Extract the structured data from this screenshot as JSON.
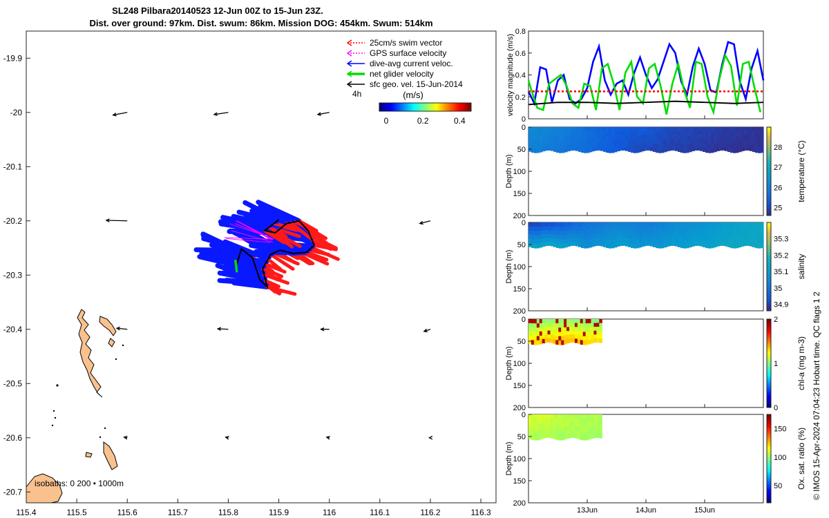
{
  "title": {
    "line1": "SL248 Pilbara20140523 12-Jun 00Z to 15-Jun 23Z.",
    "line2": "Dist. over ground: 97km. Dist. swum: 86km. Mission DOG: 454km. Swum: 514km"
  },
  "chart_data": [
    {
      "type": "map",
      "xlim": [
        115.4,
        116.33
      ],
      "ylim": [
        -20.72,
        -19.85
      ],
      "x_ticks": [
        "115.4",
        "115.5",
        "115.6",
        "115.7",
        "115.8",
        "115.9",
        "116",
        "116.1",
        "116.2",
        "116.3"
      ],
      "y_ticks": [
        "-19.9",
        "-20",
        "-20.1",
        "-20.2",
        "-20.3",
        "-20.4",
        "-20.5",
        "-20.6",
        "-20.7"
      ],
      "legend": [
        {
          "label": "25cm/s swim vector",
          "color": "#ff0000",
          "style": "dotted"
        },
        {
          "label": "GPS surface velocity",
          "color": "#ff00ff",
          "style": "dotted"
        },
        {
          "label": "dive-avg current veloc.",
          "color": "#0000ff",
          "style": "solid"
        },
        {
          "label": "net glider velocity",
          "color": "#00dd00",
          "style": "thick"
        },
        {
          "label": "sfc geo. vel. 15-Jun-2014",
          "color": "#000000",
          "style": "solid"
        }
      ],
      "legend_placement": "top-right",
      "colorbar": {
        "tag": "4h",
        "units": "(m/s)",
        "ticks": [
          "0",
          "0.2",
          "0.4"
        ],
        "range": [
          0,
          0.5
        ]
      },
      "isobaths_label": "isobaths: 0    200 • 1000m",
      "geo_vectors": [
        {
          "lon": 115.6,
          "lat": -20.0,
          "u": -0.027,
          "v": -0.005
        },
        {
          "lon": 115.8,
          "lat": -20.0,
          "u": -0.027,
          "v": -0.004
        },
        {
          "lon": 116.0,
          "lat": -20.0,
          "u": -0.022,
          "v": -0.004
        },
        {
          "lon": 115.6,
          "lat": -20.2,
          "u": -0.04,
          "v": 0.001
        },
        {
          "lon": 116.2,
          "lat": -20.2,
          "u": -0.02,
          "v": -0.005
        },
        {
          "lon": 115.6,
          "lat": -20.4,
          "u": -0.02,
          "v": 0.002
        },
        {
          "lon": 115.8,
          "lat": -20.4,
          "u": -0.02,
          "v": 0.001
        },
        {
          "lon": 116.0,
          "lat": -20.4,
          "u": -0.016,
          "v": 0.0
        },
        {
          "lon": 116.2,
          "lat": -20.4,
          "u": -0.012,
          "v": -0.004
        },
        {
          "lon": 115.6,
          "lat": -20.6,
          "u": -0.006,
          "v": 0.001
        },
        {
          "lon": 115.8,
          "lat": -20.6,
          "u": -0.005,
          "v": 0.001
        },
        {
          "lon": 116.0,
          "lat": -20.6,
          "u": -0.005,
          "v": 0.001
        },
        {
          "lon": 116.2,
          "lat": -20.6,
          "u": -0.002,
          "v": 0.0
        }
      ],
      "glider_track": [
        [
          115.816,
          -20.282
        ],
        [
          115.826,
          -20.252
        ],
        [
          115.848,
          -20.268
        ],
        [
          115.862,
          -20.308
        ],
        [
          115.877,
          -20.322
        ],
        [
          115.868,
          -20.288
        ],
        [
          115.884,
          -20.262
        ],
        [
          115.902,
          -20.254
        ],
        [
          115.928,
          -20.26
        ],
        [
          115.955,
          -20.258
        ],
        [
          115.97,
          -20.245
        ],
        [
          115.958,
          -20.218
        ],
        [
          115.94,
          -20.2
        ],
        [
          115.915,
          -20.205
        ],
        [
          115.893,
          -20.222
        ],
        [
          115.872,
          -20.218
        ],
        [
          115.9,
          -20.198
        ]
      ]
    },
    {
      "type": "line",
      "ylabel": "velocity magnitude (m/s)",
      "ylim": [
        0,
        0.8
      ],
      "y_ticks": [
        "0",
        "0.2",
        "0.4",
        "0.6",
        "0.8"
      ],
      "xlim_days": [
        12.0,
        16.0
      ],
      "series": [
        {
          "color": "#0000ff",
          "x": [
            12.0,
            12.1,
            12.2,
            12.3,
            12.4,
            12.5,
            12.6,
            12.7,
            12.8,
            12.9,
            13.0,
            13.1,
            13.2,
            13.3,
            13.4,
            13.5,
            13.6,
            13.7,
            13.8,
            13.9,
            14.0,
            14.1,
            14.2,
            14.3,
            14.4,
            14.5,
            14.6,
            14.7,
            14.8,
            14.9,
            15.0,
            15.1,
            15.2,
            15.3,
            15.4,
            15.5,
            15.6,
            15.7,
            15.8,
            15.9,
            16.0
          ],
          "y": [
            0.25,
            0.14,
            0.47,
            0.45,
            0.15,
            0.35,
            0.4,
            0.18,
            0.14,
            0.18,
            0.28,
            0.52,
            0.66,
            0.35,
            0.22,
            0.32,
            0.35,
            0.22,
            0.42,
            0.56,
            0.4,
            0.28,
            0.36,
            0.52,
            0.68,
            0.6,
            0.34,
            0.22,
            0.48,
            0.64,
            0.5,
            0.26,
            0.24,
            0.5,
            0.7,
            0.68,
            0.34,
            0.18,
            0.46,
            0.62,
            0.35
          ]
        },
        {
          "color": "#00dd00",
          "x": [
            12.0,
            12.05,
            12.15,
            12.25,
            12.35,
            12.45,
            12.55,
            12.65,
            12.75,
            12.85,
            12.95,
            13.05,
            13.15,
            13.25,
            13.35,
            13.45,
            13.55,
            13.65,
            13.75,
            13.85,
            13.95,
            14.05,
            14.15,
            14.25,
            14.35,
            14.45,
            14.55,
            14.65,
            14.75,
            14.85,
            14.95,
            15.05,
            15.15,
            15.25,
            15.35,
            15.45,
            15.55,
            15.65,
            15.75,
            15.85,
            15.95
          ],
          "y": [
            0.35,
            0.26,
            0.1,
            0.08,
            0.32,
            0.36,
            0.4,
            0.3,
            0.14,
            0.1,
            0.32,
            0.3,
            0.08,
            0.46,
            0.5,
            0.32,
            0.08,
            0.42,
            0.52,
            0.2,
            0.14,
            0.46,
            0.5,
            0.3,
            0.04,
            0.32,
            0.5,
            0.26,
            0.1,
            0.52,
            0.5,
            0.2,
            0.06,
            0.36,
            0.58,
            0.48,
            0.12,
            0.5,
            0.52,
            0.28,
            0.06
          ]
        },
        {
          "color": "#ff0000",
          "style": "dotted",
          "x": [
            12.0,
            16.0
          ],
          "y": [
            0.25,
            0.25
          ]
        },
        {
          "color": "#000000",
          "x": [
            12.0,
            12.5,
            13.0,
            13.5,
            14.0,
            14.5,
            15.0,
            15.5,
            16.0
          ],
          "y": [
            0.13,
            0.15,
            0.15,
            0.14,
            0.15,
            0.16,
            0.15,
            0.14,
            0.15
          ]
        }
      ]
    },
    {
      "type": "heatmap",
      "ylabel": "Depth (m)",
      "ylim": [
        200,
        0
      ],
      "y_ticks": [
        "0",
        "50",
        "100",
        "150",
        "200"
      ],
      "colorbar_label": "temperature (°C)",
      "colorbar_range": [
        24.6,
        29.0
      ],
      "colorbar_ticks": [
        "25",
        "26",
        "27",
        "28"
      ],
      "x_extent_days": [
        12.0,
        16.0
      ],
      "bottom_depth_m": 55,
      "profile": [
        {
          "day": 12.0,
          "shallow": 26.2,
          "deep": 26.0
        },
        {
          "day": 12.5,
          "shallow": 26.0,
          "deep": 25.8
        },
        {
          "day": 13.0,
          "shallow": 25.6,
          "deep": 25.6
        },
        {
          "day": 13.5,
          "shallow": 25.3,
          "deep": 25.2
        },
        {
          "day": 14.0,
          "shallow": 25.2,
          "deep": 25.0
        },
        {
          "day": 14.5,
          "shallow": 25.0,
          "deep": 24.9
        },
        {
          "day": 15.0,
          "shallow": 24.9,
          "deep": 24.8
        },
        {
          "day": 15.5,
          "shallow": 24.8,
          "deep": 24.7
        },
        {
          "day": 16.0,
          "shallow": 24.7,
          "deep": 24.7
        }
      ]
    },
    {
      "type": "heatmap",
      "ylabel": "Depth (m)",
      "ylim": [
        200,
        0
      ],
      "y_ticks": [
        "0",
        "50",
        "100",
        "150",
        "200"
      ],
      "colorbar_label": "salinity",
      "colorbar_range": [
        34.86,
        35.4
      ],
      "colorbar_ticks": [
        "34.9",
        "35",
        "35.1",
        "35.2",
        "35.3"
      ],
      "x_extent_days": [
        12.0,
        16.0
      ],
      "bottom_depth_m": 55,
      "profile": [
        {
          "day": 12.0,
          "shallow": 34.9,
          "deep": 35.12
        },
        {
          "day": 12.5,
          "shallow": 34.94,
          "deep": 35.12
        },
        {
          "day": 13.0,
          "shallow": 35.0,
          "deep": 35.06
        },
        {
          "day": 13.5,
          "shallow": 35.04,
          "deep": 35.1
        },
        {
          "day": 14.0,
          "shallow": 35.02,
          "deep": 35.08
        },
        {
          "day": 14.5,
          "shallow": 35.06,
          "deep": 35.1
        },
        {
          "day": 15.0,
          "shallow": 35.08,
          "deep": 35.12
        },
        {
          "day": 15.5,
          "shallow": 35.12,
          "deep": 35.14
        },
        {
          "day": 16.0,
          "shallow": 35.14,
          "deep": 35.14
        }
      ]
    },
    {
      "type": "heatmap",
      "ylabel": "Depth (m)",
      "ylim": [
        200,
        0
      ],
      "y_ticks": [
        "0",
        "50",
        "100",
        "150",
        "200"
      ],
      "colorbar_label": "chl-a (mg m-3)",
      "colorbar_range": [
        0,
        2
      ],
      "colorbar_ticks": [
        "0",
        "1",
        "2"
      ],
      "x_extent_days": [
        12.0,
        13.25
      ],
      "bottom_depth_m": 55,
      "profile": [
        {
          "day": 12.0,
          "shallow": 1.0,
          "deep": 1.3
        },
        {
          "day": 12.6,
          "shallow": 1.05,
          "deep": 1.4
        },
        {
          "day": 13.25,
          "shallow": 1.0,
          "deep": 1.3
        }
      ]
    },
    {
      "type": "heatmap",
      "ylabel": "Depth (m)",
      "ylim": [
        200,
        0
      ],
      "y_ticks": [
        "0",
        "50",
        "100",
        "150",
        "200"
      ],
      "colorbar_label": "Ox. sat. ratio (%)",
      "colorbar_range": [
        20,
        175
      ],
      "colorbar_ticks": [
        "50",
        "100",
        "150"
      ],
      "x_extent_days": [
        12.0,
        13.25
      ],
      "bottom_depth_m": 55,
      "profile": [
        {
          "day": 12.0,
          "shallow": 112,
          "deep": 105
        },
        {
          "day": 12.5,
          "shallow": 108,
          "deep": 104
        },
        {
          "day": 13.25,
          "shallow": 104,
          "deep": 103
        }
      ]
    }
  ],
  "time_axis": {
    "ticks": [
      {
        "day": 13,
        "label": "13Jun"
      },
      {
        "day": 14,
        "label": "14Jun"
      },
      {
        "day": 15,
        "label": "15Jun"
      }
    ]
  },
  "side_note": "© IMOS 15-Apr-2024 07:04:23 Hobart time. QC flags 1  2"
}
